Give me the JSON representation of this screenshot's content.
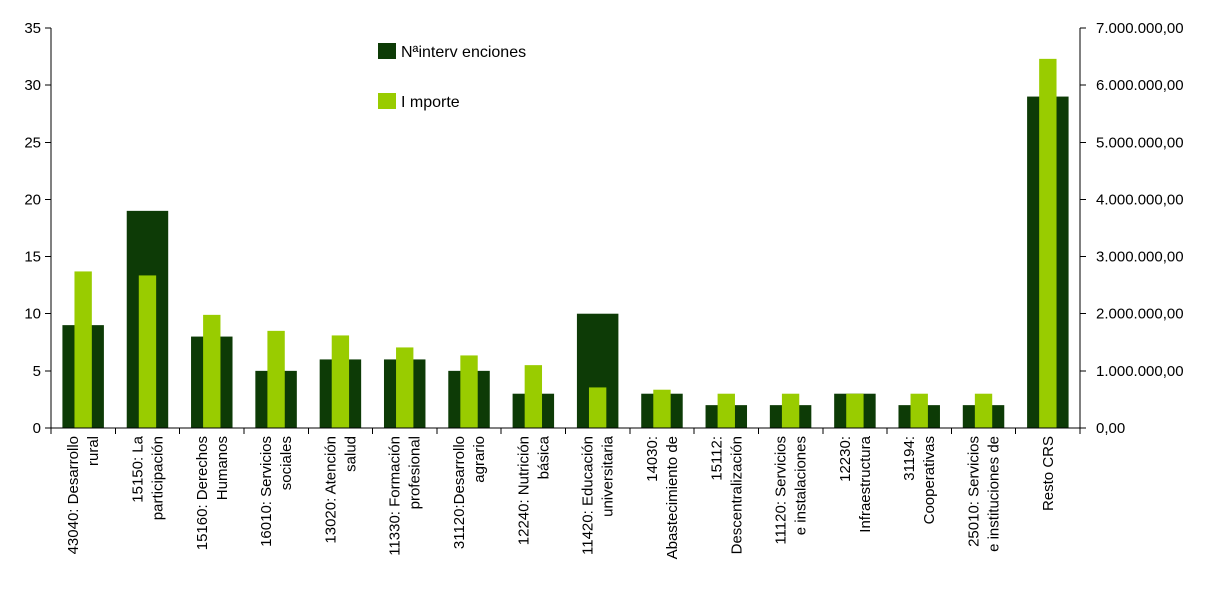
{
  "chart_data": {
    "type": "bar",
    "categories": [
      [
        "43040: Desarrollo",
        "rural"
      ],
      [
        "15150: La",
        "participación"
      ],
      [
        "15160: Derechos",
        "Humanos"
      ],
      [
        "16010: Servicios",
        "sociales"
      ],
      [
        "13020: Atención",
        "salud"
      ],
      [
        "11330: Formación",
        "profesional"
      ],
      [
        "31120:Desarrollo",
        "agrario"
      ],
      [
        "12240: Nutrición",
        "básica"
      ],
      [
        "11420: Educación",
        "universitaria"
      ],
      [
        "14030:",
        "Abastecimiento de"
      ],
      [
        "15112:",
        "Descentralización"
      ],
      [
        "11120: Servicios",
        "e instalaciones"
      ],
      [
        "12230:",
        "Infraestructura"
      ],
      [
        "31194:",
        "Cooperativas"
      ],
      [
        "25010: Servicios",
        "e instituciones de"
      ],
      [
        "Resto CRS"
      ]
    ],
    "series": [
      {
        "name": "Nªinterv enciones",
        "axis": "left",
        "color": "#0d3b06",
        "values": [
          9,
          19,
          8,
          5,
          6,
          6,
          5,
          3,
          10,
          3,
          2,
          2,
          3,
          2,
          2,
          29
        ]
      },
      {
        "name": "I mporte",
        "axis": "right",
        "color": "#99cc00",
        "values": [
          2740000,
          2670000,
          1980000,
          1700000,
          1620000,
          1410000,
          1270000,
          1100000,
          710000,
          670000,
          600000,
          600000,
          600000,
          600000,
          600000,
          6460000
        ]
      }
    ],
    "y_left": {
      "range": [
        0,
        35
      ],
      "ticks": [
        0,
        5,
        10,
        15,
        20,
        25,
        30,
        35
      ],
      "tick_labels": [
        "0",
        "5",
        "10",
        "15",
        "20",
        "25",
        "30",
        "35"
      ]
    },
    "y_right": {
      "range": [
        0,
        7000000
      ],
      "ticks": [
        0,
        1000000,
        2000000,
        3000000,
        4000000,
        5000000,
        6000000,
        7000000
      ],
      "tick_labels": [
        "0,00",
        "1.000.000,00",
        "2.000.000,00",
        "3.000.000,00",
        "4.000.000,00",
        "5.000.000,00",
        "6.000.000,00",
        "7.000.000,00"
      ]
    },
    "legend": {
      "placement": "top-center",
      "entries": [
        "Nªinterv enciones",
        "I mporte"
      ]
    },
    "grid": false,
    "title": "",
    "xlabel": "",
    "ylabel": ""
  }
}
